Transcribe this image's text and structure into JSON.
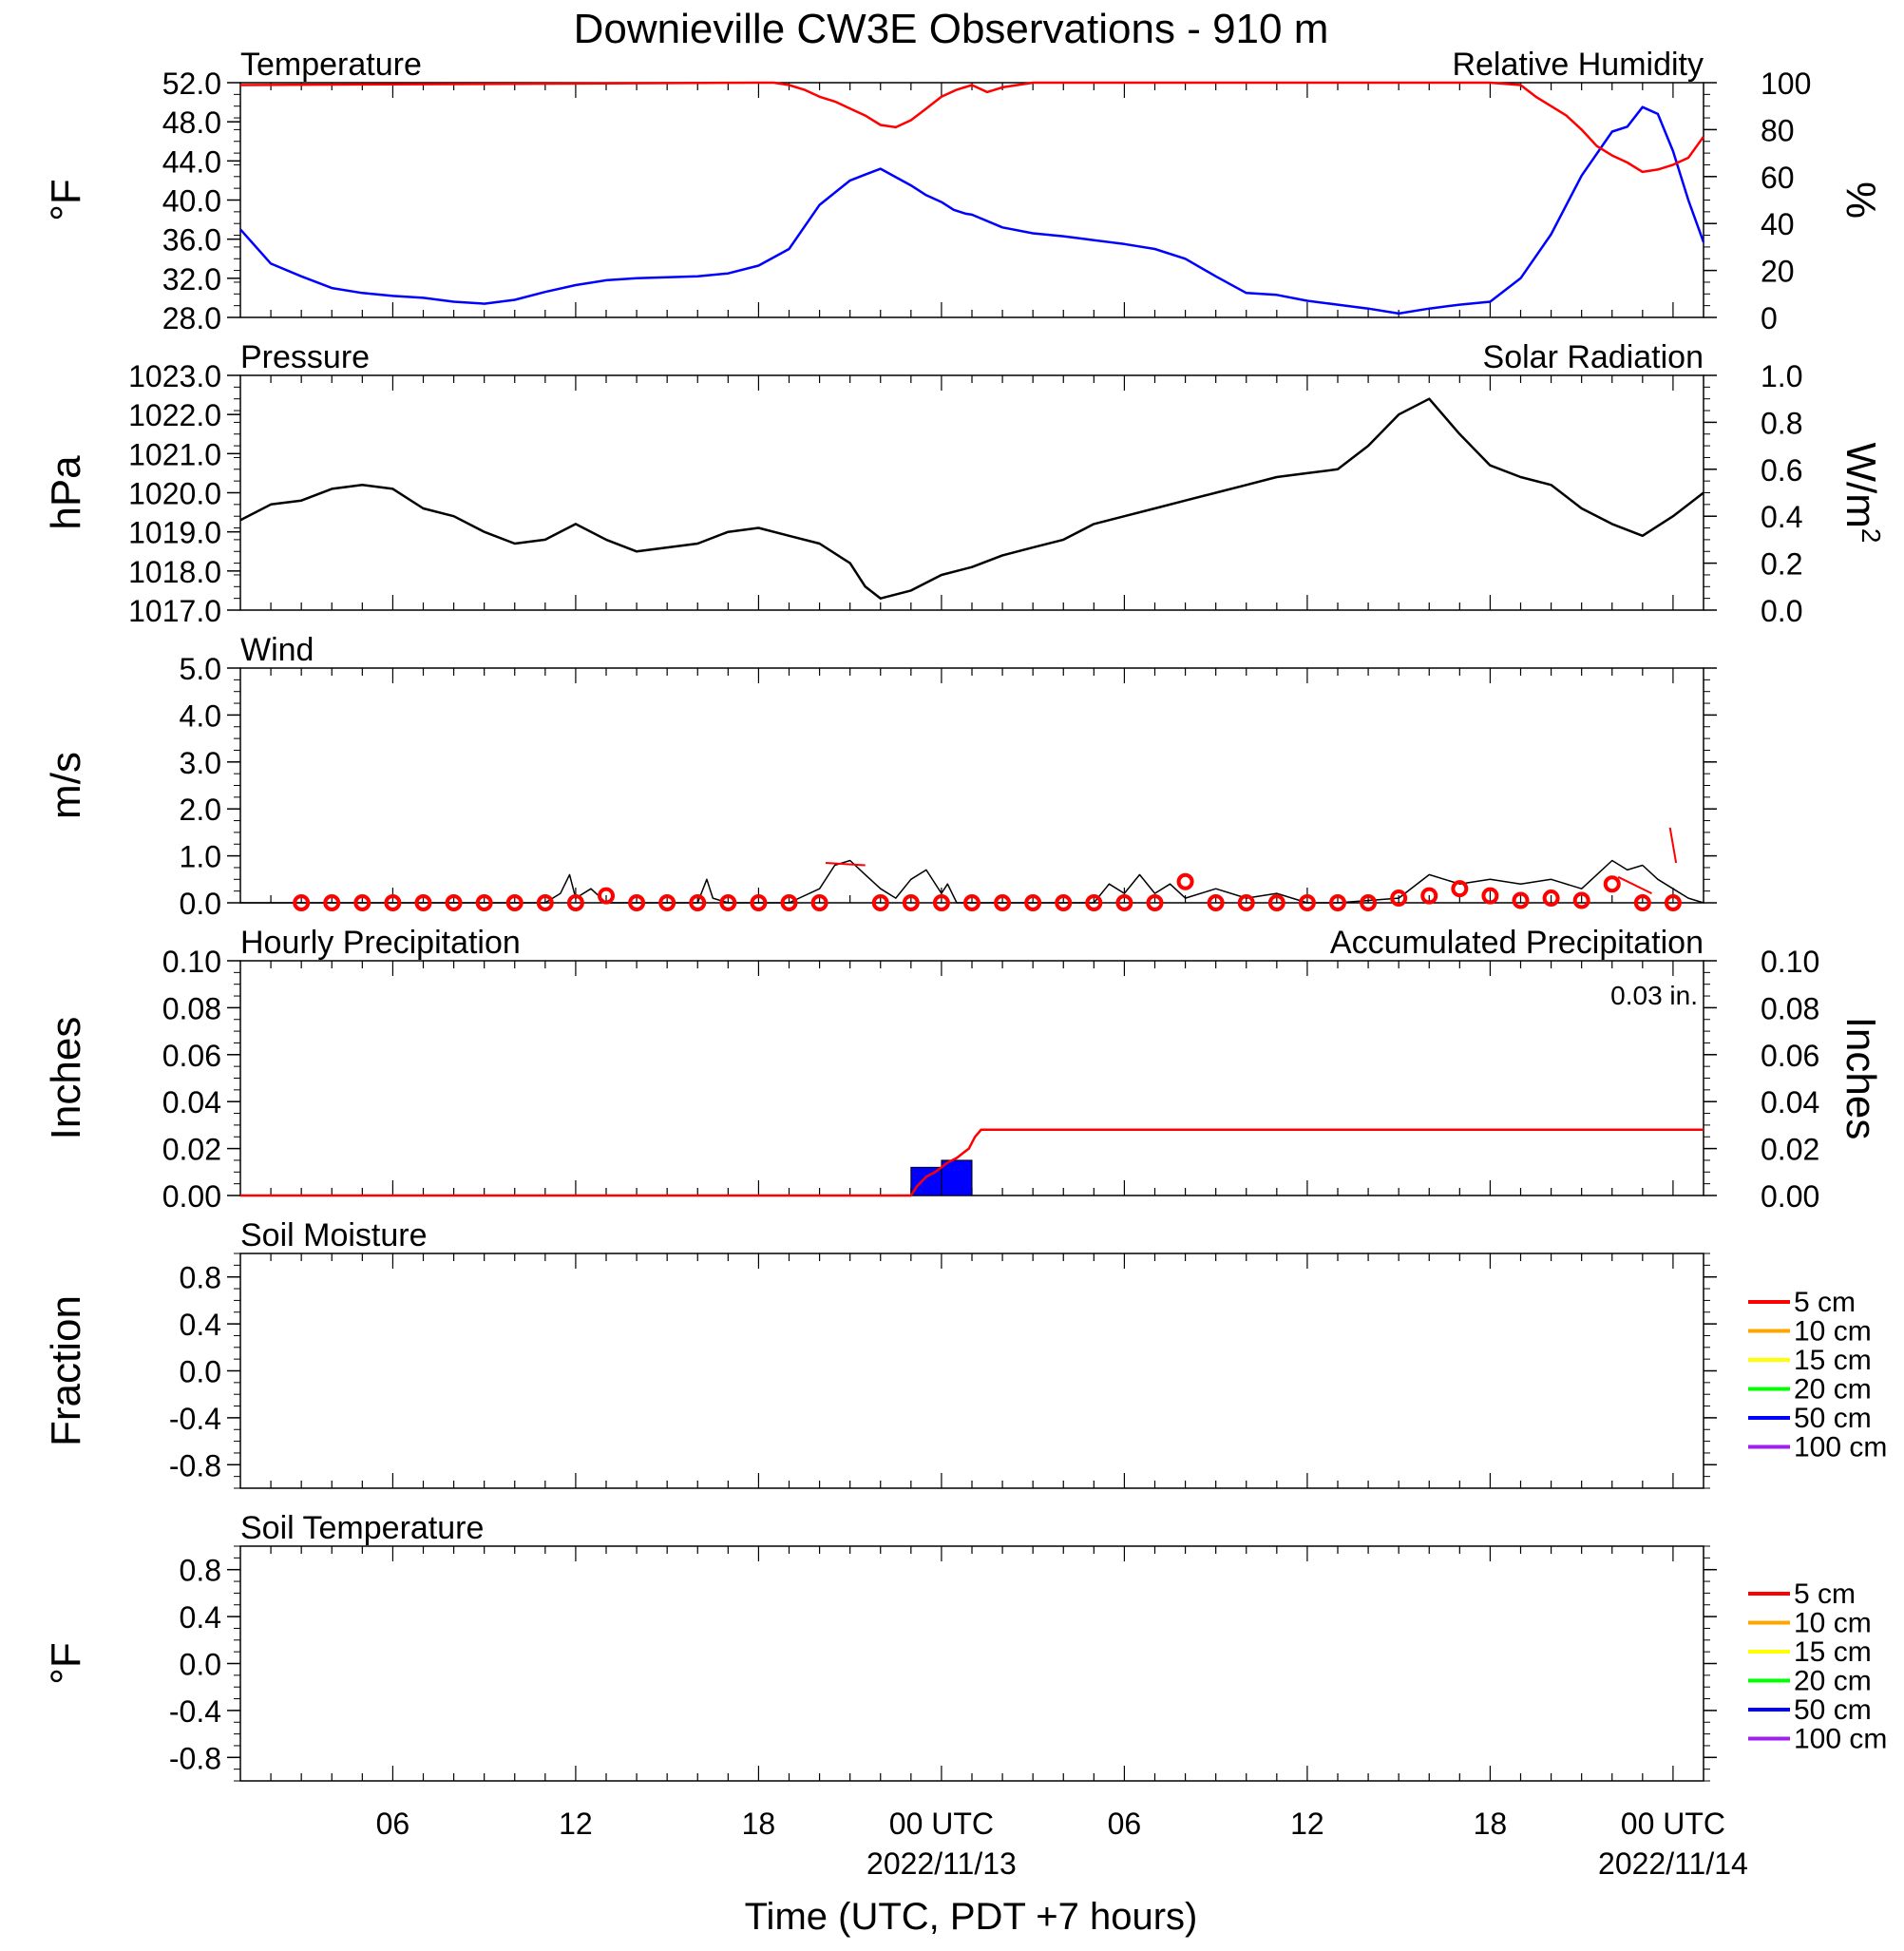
{
  "title": "Downieville CW3E Observations - 910 m",
  "colors": {
    "blue": "#0000ff",
    "red": "#ff0000",
    "green": "#00ff00",
    "black": "#000000",
    "soil": [
      "#ff0000",
      "#ffa500",
      "#ffff00",
      "#00ff00",
      "#0000ff",
      "#a020f0"
    ]
  },
  "x_axis": {
    "label": "Time (UTC, PDT +7 hours)",
    "range_hours": [
      0,
      48
    ],
    "ticks": [
      {
        "h": 5,
        "label": "06"
      },
      {
        "h": 11,
        "label": "12"
      },
      {
        "h": 17,
        "label": "18"
      },
      {
        "h": 23,
        "label": "00 UTC",
        "date": "2022/11/13"
      },
      {
        "h": 29,
        "label": "06"
      },
      {
        "h": 35,
        "label": "12"
      },
      {
        "h": 41,
        "label": "18"
      },
      {
        "h": 47,
        "label": "00 UTC",
        "date": "2022/11/14"
      }
    ]
  },
  "panels": {
    "temperature": {
      "title_left": "Temperature",
      "title_right": "Relative Humidity",
      "ylabel_left": "°F",
      "ylabel_right": "%",
      "ylim_left": [
        28,
        52
      ],
      "ylim_right": [
        0,
        100
      ],
      "ticks_left": [
        "28.0",
        "32.0",
        "36.0",
        "40.0",
        "44.0",
        "48.0",
        "52.0"
      ],
      "ticks_right": [
        "0",
        "20",
        "40",
        "60",
        "80",
        "100"
      ]
    },
    "pressure": {
      "title_left": "Pressure",
      "title_right": "Solar Radiation",
      "ylabel_left": "hPa",
      "ylabel_right": "W/m",
      "ylabel_right_sup": "2",
      "ylim_left": [
        1017,
        1023
      ],
      "ylim_right": [
        0,
        1
      ],
      "ticks_left": [
        "1017.0",
        "1018.0",
        "1019.0",
        "1020.0",
        "1021.0",
        "1022.0",
        "1023.0"
      ],
      "ticks_right": [
        "0.0",
        "0.2",
        "0.4",
        "0.6",
        "0.8",
        "1.0"
      ]
    },
    "wind": {
      "title_left": "Wind",
      "ylabel_left": "m/s",
      "ylim_left": [
        0,
        5
      ],
      "ticks_left": [
        "0.0",
        "1.0",
        "2.0",
        "3.0",
        "4.0",
        "5.0"
      ]
    },
    "precip": {
      "title_left": "Hourly Precipitation",
      "title_right": "Accumulated Precipitation",
      "total_label": "0.03 in.",
      "ylabel_left": "Inches",
      "ylabel_right": "Inches",
      "ylim_left": [
        0,
        0.1
      ],
      "ylim_right": [
        0,
        0.1
      ],
      "ticks_left": [
        "0.00",
        "0.02",
        "0.04",
        "0.06",
        "0.08",
        "0.10"
      ],
      "ticks_right": [
        "0.00",
        "0.02",
        "0.04",
        "0.06",
        "0.08",
        "0.10"
      ]
    },
    "soil_moisture": {
      "title_left": "Soil Moisture",
      "ylabel_left": "Fraction",
      "ylim_left": [
        -1,
        1
      ],
      "ticks_left": [
        "-0.8",
        "-0.4",
        "0.0",
        "0.4",
        "0.8"
      ]
    },
    "soil_temperature": {
      "title_left": "Soil Temperature",
      "ylabel_left": "°F",
      "ylim_left": [
        -1,
        1
      ],
      "ticks_left": [
        "-0.8",
        "-0.4",
        "0.0",
        "0.4",
        "0.8"
      ]
    }
  },
  "soil_legend": [
    "5 cm",
    "10 cm",
    "15 cm",
    "20 cm",
    "50 cm",
    "100 cm"
  ],
  "chart_data": [
    {
      "type": "line",
      "panel": "temperature",
      "series": [
        {
          "name": "Temperature",
          "axis": "left",
          "color": "#0000ff",
          "x": [
            0,
            1,
            2,
            3,
            4,
            5,
            6,
            7,
            8,
            9,
            10,
            11,
            12,
            13,
            14,
            15,
            16,
            17,
            18,
            19,
            20,
            20.5,
            21,
            22,
            22.5,
            23,
            23.4,
            23.8,
            24,
            25,
            26,
            27,
            28,
            29,
            30,
            31,
            32,
            33,
            34,
            35,
            36,
            37,
            38,
            39,
            40,
            41,
            42,
            43,
            44,
            45,
            45.5,
            46,
            46.5,
            47,
            47.5,
            48
          ],
          "y": [
            37.0,
            33.5,
            32.2,
            31.0,
            30.5,
            30.2,
            30.0,
            29.6,
            29.4,
            29.8,
            30.6,
            31.3,
            31.8,
            32.0,
            32.1,
            32.2,
            32.5,
            33.3,
            35.0,
            39.5,
            42.0,
            42.6,
            43.2,
            41.5,
            40.5,
            39.8,
            39.0,
            38.6,
            38.5,
            37.2,
            36.6,
            36.3,
            35.9,
            35.5,
            35.0,
            34.0,
            32.2,
            30.5,
            30.3,
            29.7,
            29.3,
            28.9,
            28.4,
            28.9,
            29.3,
            29.6,
            32.0,
            36.5,
            42.5,
            47.0,
            47.5,
            49.5,
            48.8,
            45.0,
            40.0,
            35.7
          ]
        },
        {
          "name": "Relative Humidity",
          "axis": "right",
          "color": "#ff0000",
          "x": [
            0,
            17,
            17.5,
            18,
            18.5,
            19,
            19.5,
            20,
            20.5,
            21,
            21.5,
            22,
            22.5,
            23,
            23.5,
            24,
            24.5,
            25,
            26,
            40,
            41,
            42,
            42.5,
            43,
            43.5,
            44,
            44.5,
            45,
            45.5,
            46,
            46.5,
            47,
            47.5,
            48
          ],
          "y": [
            99,
            100,
            100,
            99,
            97,
            94,
            92,
            89,
            86,
            82,
            81,
            84,
            89,
            94,
            97,
            99,
            96,
            98,
            100,
            100,
            100,
            99,
            94,
            90,
            86,
            80,
            73,
            69,
            66,
            62,
            63,
            65,
            68,
            77
          ]
        }
      ]
    },
    {
      "type": "line",
      "panel": "pressure",
      "series": [
        {
          "name": "Pressure",
          "axis": "left",
          "color": "#000000",
          "x": [
            0,
            1,
            2,
            3,
            4,
            5,
            6,
            7,
            8,
            9,
            10,
            11,
            12,
            13,
            14,
            15,
            16,
            17,
            18,
            19,
            20,
            20.5,
            21,
            22,
            23,
            24,
            25,
            26,
            27,
            28,
            29,
            30,
            31,
            32,
            33,
            34,
            35,
            36,
            37,
            38,
            39,
            40,
            41,
            42,
            43,
            44,
            45,
            46,
            47,
            48
          ],
          "y": [
            1019.3,
            1019.7,
            1019.8,
            1020.1,
            1020.2,
            1020.1,
            1019.6,
            1019.4,
            1019.0,
            1018.7,
            1018.8,
            1019.2,
            1018.8,
            1018.5,
            1018.6,
            1018.7,
            1019.0,
            1019.1,
            1018.9,
            1018.7,
            1018.2,
            1017.6,
            1017.3,
            1017.5,
            1017.9,
            1018.1,
            1018.4,
            1018.6,
            1018.8,
            1019.2,
            1019.4,
            1019.6,
            1019.8,
            1020.0,
            1020.2,
            1020.4,
            1020.5,
            1020.6,
            1021.2,
            1022.0,
            1022.4,
            1021.5,
            1020.7,
            1020.4,
            1020.2,
            1019.6,
            1019.2,
            1018.9,
            1019.4,
            1020.0
          ]
        },
        {
          "name": "Solar Radiation",
          "axis": "right",
          "color": "#00ff00",
          "x": [],
          "y": []
        }
      ]
    },
    {
      "type": "line",
      "panel": "wind",
      "series": [
        {
          "name": "Wind Speed",
          "color": "#000000",
          "x": [
            0,
            10,
            10.5,
            10.8,
            11,
            11.5,
            12,
            15,
            15.3,
            15.5,
            16,
            18,
            19,
            19.5,
            20,
            20.5,
            21,
            21.5,
            22,
            22.5,
            23,
            23.2,
            23.5,
            24,
            25,
            28,
            28.5,
            29,
            29.5,
            30,
            30.5,
            31,
            32,
            33,
            34,
            35,
            36,
            38,
            39,
            40,
            41,
            42,
            43,
            44,
            44.5,
            45,
            45.5,
            46,
            46.5,
            47,
            47.5,
            48
          ],
          "y": [
            0,
            0,
            0.2,
            0.6,
            0.1,
            0.3,
            0,
            0,
            0.5,
            0.1,
            0,
            0,
            0.3,
            0.8,
            0.9,
            0.6,
            0.3,
            0.1,
            0.5,
            0.7,
            0.2,
            0.4,
            0,
            0,
            0,
            0,
            0.4,
            0.2,
            0.6,
            0.2,
            0.4,
            0.1,
            0.3,
            0.1,
            0.2,
            0,
            0,
            0.1,
            0.6,
            0.4,
            0.5,
            0.4,
            0.5,
            0.3,
            0.6,
            0.9,
            0.7,
            0.8,
            0.5,
            0.3,
            0.1,
            0
          ]
        },
        {
          "name": "Wind Barbs",
          "color": "#ff0000",
          "x": [
            2,
            3,
            4,
            5,
            6,
            7,
            8,
            9,
            10,
            11,
            12,
            13,
            14,
            15,
            16,
            17,
            18,
            19,
            21,
            22,
            23,
            24,
            25,
            26,
            27,
            28,
            29,
            30,
            31,
            32,
            33,
            34,
            35,
            36,
            37,
            38,
            39,
            40,
            41,
            42,
            43,
            44,
            45,
            46,
            47
          ],
          "y": [
            0,
            0,
            0,
            0,
            0,
            0,
            0,
            0,
            0,
            0,
            0.15,
            0,
            0,
            0,
            0,
            0,
            0,
            0,
            0,
            0,
            0,
            0,
            0,
            0,
            0,
            0,
            0,
            0,
            0.45,
            0,
            0,
            0,
            0,
            0,
            0,
            0.1,
            0.15,
            0.3,
            0.15,
            0.05,
            0.1,
            0.05,
            0.4,
            0,
            0
          ]
        }
      ]
    },
    {
      "type": "bar",
      "panel": "precip",
      "series": [
        {
          "name": "Hourly Precipitation",
          "axis": "left",
          "color": "#0000ff",
          "x": [
            22,
            23
          ],
          "width": 1,
          "values": [
            0.012,
            0.015
          ]
        },
        {
          "name": "Accumulated Precipitation",
          "axis": "right",
          "color": "#ff0000",
          "type": "line",
          "x": [
            0,
            22,
            22.2,
            22.5,
            22.8,
            23,
            23.2,
            23.5,
            23.7,
            23.9,
            24.1,
            24.3,
            48
          ],
          "y": [
            0,
            0,
            0.004,
            0.008,
            0.01,
            0.012,
            0.014,
            0.016,
            0.018,
            0.02,
            0.025,
            0.028,
            0.028
          ]
        }
      ]
    },
    {
      "type": "line",
      "panel": "soil_moisture",
      "series": []
    },
    {
      "type": "line",
      "panel": "soil_temperature",
      "series": []
    }
  ]
}
